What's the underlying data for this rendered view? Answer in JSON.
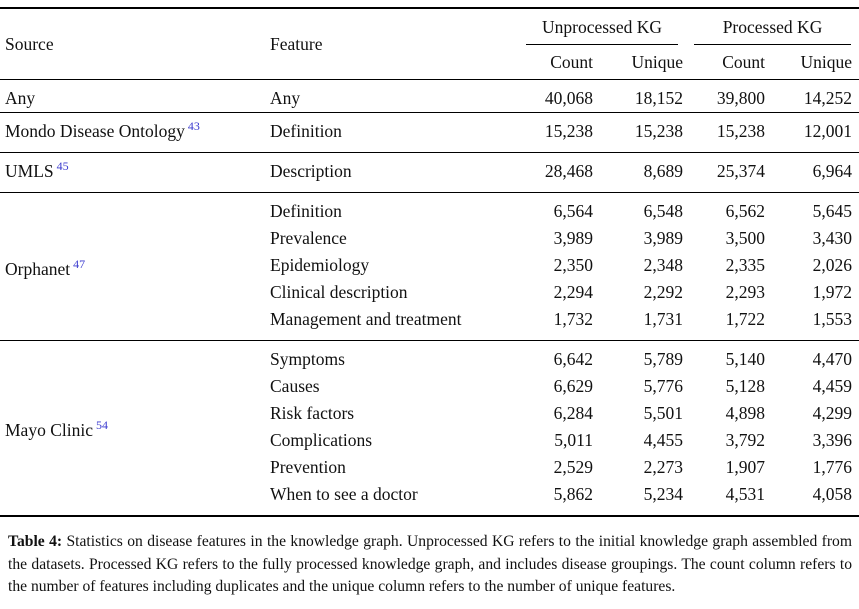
{
  "table": {
    "header": {
      "source": "Source",
      "feature": "Feature",
      "spanners": [
        "Unprocessed KG",
        "Processed KG"
      ],
      "subheaders": [
        "Count",
        "Unique",
        "Count",
        "Unique"
      ]
    },
    "groups": [
      {
        "source": "Any",
        "ref": "",
        "rows": [
          {
            "feature": "Any",
            "u_count": "40,068",
            "u_unique": "18,152",
            "p_count": "39,800",
            "p_unique": "14,252"
          }
        ]
      },
      {
        "source": "Mondo Disease Ontology",
        "ref": "43",
        "rows": [
          {
            "feature": "Definition",
            "u_count": "15,238",
            "u_unique": "15,238",
            "p_count": "15,238",
            "p_unique": "12,001"
          }
        ]
      },
      {
        "source": "UMLS",
        "ref": "45",
        "rows": [
          {
            "feature": "Description",
            "u_count": "28,468",
            "u_unique": "8,689",
            "p_count": "25,374",
            "p_unique": "6,964"
          }
        ]
      },
      {
        "source": "Orphanet",
        "ref": "47",
        "rows": [
          {
            "feature": "Definition",
            "u_count": "6,564",
            "u_unique": "6,548",
            "p_count": "6,562",
            "p_unique": "5,645"
          },
          {
            "feature": "Prevalence",
            "u_count": "3,989",
            "u_unique": "3,989",
            "p_count": "3,500",
            "p_unique": "3,430"
          },
          {
            "feature": "Epidemiology",
            "u_count": "2,350",
            "u_unique": "2,348",
            "p_count": "2,335",
            "p_unique": "2,026"
          },
          {
            "feature": "Clinical description",
            "u_count": "2,294",
            "u_unique": "2,292",
            "p_count": "2,293",
            "p_unique": "1,972"
          },
          {
            "feature": "Management and treatment",
            "u_count": "1,732",
            "u_unique": "1,731",
            "p_count": "1,722",
            "p_unique": "1,553"
          }
        ]
      },
      {
        "source": "Mayo Clinic",
        "ref": "54",
        "rows": [
          {
            "feature": "Symptoms",
            "u_count": "6,642",
            "u_unique": "5,789",
            "p_count": "5,140",
            "p_unique": "4,470"
          },
          {
            "feature": "Causes",
            "u_count": "6,629",
            "u_unique": "5,776",
            "p_count": "5,128",
            "p_unique": "4,459"
          },
          {
            "feature": "Risk factors",
            "u_count": "6,284",
            "u_unique": "5,501",
            "p_count": "4,898",
            "p_unique": "4,299"
          },
          {
            "feature": "Complications",
            "u_count": "5,011",
            "u_unique": "4,455",
            "p_count": "3,792",
            "p_unique": "3,396"
          },
          {
            "feature": "Prevention",
            "u_count": "2,529",
            "u_unique": "2,273",
            "p_count": "1,907",
            "p_unique": "1,776"
          },
          {
            "feature": "When to see a doctor",
            "u_count": "5,862",
            "u_unique": "5,234",
            "p_count": "4,531",
            "p_unique": "4,058"
          }
        ]
      }
    ]
  },
  "caption": {
    "label": "Table 4:",
    "text": " Statistics on disease features in the knowledge graph. Unprocessed KG refers to the initial knowledge graph assembled from the datasets. Processed KG refers to the fully processed knowledge graph, and includes disease groupings. The count column refers to the number of features including duplicates and the unique column refers to the number of unique features."
  },
  "colors": {
    "citation_link": "#3b3bcf",
    "rule": "#000000",
    "background": "#ffffff"
  }
}
